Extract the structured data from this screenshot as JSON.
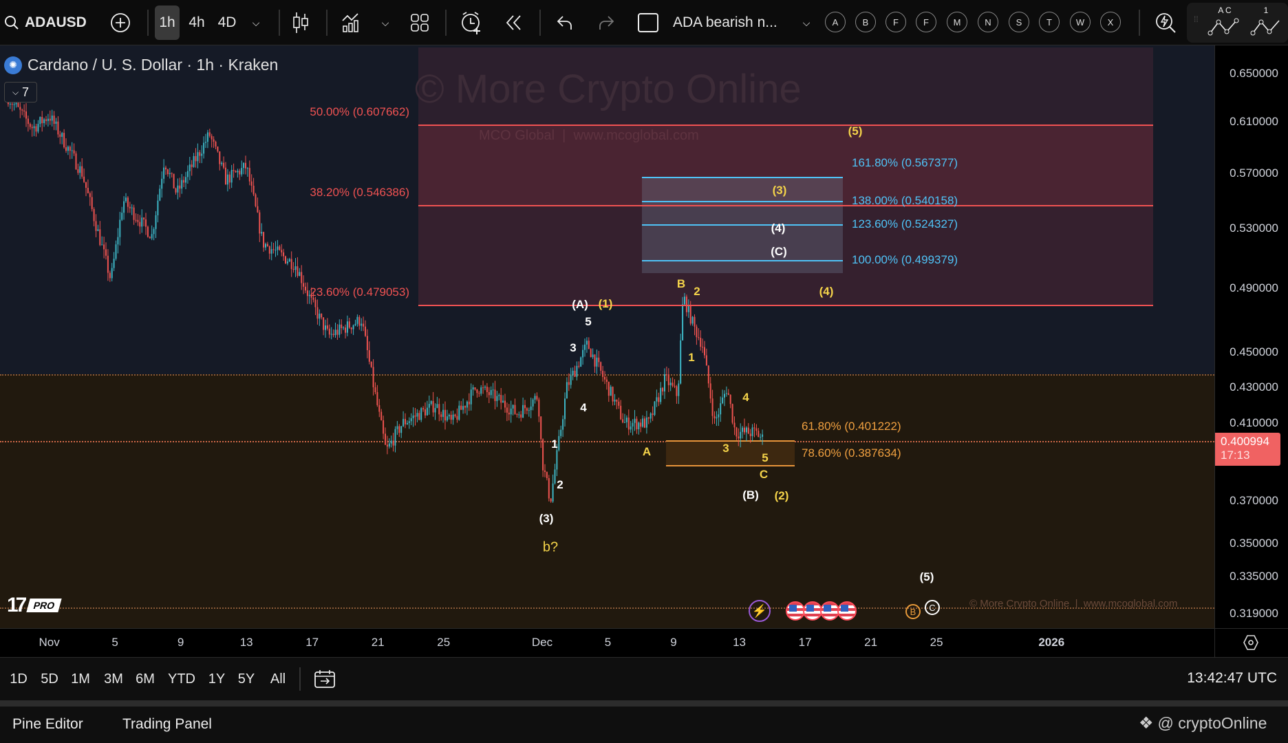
{
  "toolbar": {
    "symbol": "ADAUSD",
    "intervals": [
      "1h",
      "4h",
      "4D"
    ],
    "active_interval": "1h",
    "layout_name": "ADA bearish n...",
    "drawing_tools": [
      "A",
      "B",
      "F",
      "F",
      "M",
      "N",
      "S",
      "T",
      "W",
      "X"
    ],
    "pattern_labels": [
      "A C",
      "1"
    ],
    "icons": [
      "search-icon",
      "add-symbol-icon",
      "chevron-down-icon",
      "candles-icon",
      "indicators-icon",
      "layout-grid-icon",
      "alert-icon",
      "replay-icon",
      "undo-icon",
      "redo-icon",
      "lightning-search-icon"
    ]
  },
  "legend": {
    "title": "Cardano / U. S. Dollar · 1h · Kraken",
    "indicators_count": "7"
  },
  "watermark": {
    "main": "© More Crypto Online",
    "sub": "MCO Global  |  www.mcoglobal.com",
    "footer": "© More Crypto Online  |  www.mcoglobal.com"
  },
  "fib_retracement": [
    {
      "label": "50.00% (0.607662)",
      "price": 0.607662
    },
    {
      "label": "38.20% (0.546386)",
      "price": 0.546386
    },
    {
      "label": "23.60% (0.479053)",
      "price": 0.479053
    }
  ],
  "fib_extension": [
    {
      "label": "161.80% (0.567377)",
      "price": 0.567377
    },
    {
      "label": "138.00% (0.540158)",
      "price": 0.540158
    },
    {
      "label": "123.60% (0.524327)",
      "price": 0.524327
    },
    {
      "label": "100.00% (0.499379)",
      "price": 0.499379
    }
  ],
  "fib_support": [
    {
      "label": "61.80% (0.401222)",
      "price": 0.401222
    },
    {
      "label": "78.60% (0.387634)",
      "price": 0.387634
    }
  ],
  "wave_labels": [
    {
      "text": "(5)",
      "color": "yellow"
    },
    {
      "text": "(3)",
      "color": "yellow"
    },
    {
      "text": "(4)",
      "color": "white"
    },
    {
      "text": "(C)",
      "color": "white"
    },
    {
      "text": "B",
      "color": "yellow"
    },
    {
      "text": "2",
      "color": "yellow"
    },
    {
      "text": "(4)",
      "color": "yellow"
    },
    {
      "text": "(A)",
      "color": "white"
    },
    {
      "text": "(1)",
      "color": "yellow"
    },
    {
      "text": "5",
      "color": "white"
    },
    {
      "text": "3",
      "color": "white"
    },
    {
      "text": "1",
      "color": "yellow"
    },
    {
      "text": "4",
      "color": "yellow"
    },
    {
      "text": "4",
      "color": "white"
    },
    {
      "text": "1",
      "color": "white"
    },
    {
      "text": "A",
      "color": "yellow"
    },
    {
      "text": "3",
      "color": "yellow"
    },
    {
      "text": "5",
      "color": "yellow"
    },
    {
      "text": "C",
      "color": "yellow"
    },
    {
      "text": "2",
      "color": "white"
    },
    {
      "text": "(B)",
      "color": "white"
    },
    {
      "text": "(2)",
      "color": "yellow"
    },
    {
      "text": "(3)",
      "color": "white"
    },
    {
      "text": "b?",
      "color": "yellow"
    },
    {
      "text": "(5)",
      "color": "white"
    }
  ],
  "events": {
    "earnings_markers": [
      "B",
      "C"
    ]
  },
  "price_axis": {
    "ticks": [
      "0.650000",
      "0.610000",
      "0.570000",
      "0.530000",
      "0.490000",
      "0.450000",
      "0.430000",
      "0.410000",
      "0.370000",
      "0.350000",
      "0.335000",
      "0.319000"
    ],
    "current_price": "0.400994",
    "countdown": "17:13"
  },
  "time_axis": {
    "ticks": [
      {
        "label": "Nov",
        "date": "2025-11-01"
      },
      {
        "label": "5",
        "date": "2025-11-05"
      },
      {
        "label": "9",
        "date": "2025-11-09"
      },
      {
        "label": "13",
        "date": "2025-11-13"
      },
      {
        "label": "17",
        "date": "2025-11-17"
      },
      {
        "label": "21",
        "date": "2025-11-21"
      },
      {
        "label": "25",
        "date": "2025-11-25"
      },
      {
        "label": "Dec",
        "date": "2025-12-01"
      },
      {
        "label": "5",
        "date": "2025-12-05"
      },
      {
        "label": "9",
        "date": "2025-12-09"
      },
      {
        "label": "13",
        "date": "2025-12-13"
      },
      {
        "label": "17",
        "date": "2025-12-17"
      },
      {
        "label": "21",
        "date": "2025-12-21"
      },
      {
        "label": "25",
        "date": "2025-12-25"
      },
      {
        "label": "2026",
        "date": "2026-01-01"
      }
    ]
  },
  "periods": [
    "1D",
    "5D",
    "1M",
    "3M",
    "6M",
    "YTD",
    "1Y",
    "5Y",
    "All"
  ],
  "clock": "13:42:47 UTC",
  "bottom_panel": {
    "tabs": [
      "Pine Editor",
      "Trading Panel"
    ],
    "handle": "@ cryptoOnline"
  },
  "colors": {
    "up": "#3db5c4",
    "down": "#ef5350",
    "fib_red": "#f05252",
    "fib_cyan": "#4fc3f7",
    "support_orange": "#f0a040",
    "wave_yellow": "#f5d44a",
    "current_price_bg": "#f06262"
  },
  "chart_data": {
    "type": "candlestick",
    "scale": "log",
    "ylim": [
      0.31,
      0.66
    ],
    "price_path": [
      [
        "2025-10-29T12:00",
        0.63
      ],
      [
        "2025-10-31T00:00",
        0.605
      ],
      [
        "2025-11-01T00:00",
        0.615
      ],
      [
        "2025-11-03T00:00",
        0.57
      ],
      [
        "2025-11-04T18:00",
        0.495
      ],
      [
        "2025-11-05T12:00",
        0.55
      ],
      [
        "2025-11-07T06:00",
        0.525
      ],
      [
        "2025-11-08T00:00",
        0.58
      ],
      [
        "2025-11-08T18:00",
        0.555
      ],
      [
        "2025-11-10T18:00",
        0.6
      ],
      [
        "2025-11-11T18:00",
        0.565
      ],
      [
        "2025-11-13T00:00",
        0.575
      ],
      [
        "2025-11-14T00:00",
        0.52
      ],
      [
        "2025-11-16T00:00",
        0.505
      ],
      [
        "2025-11-17T00:00",
        0.48
      ],
      [
        "2025-11-18T00:00",
        0.46
      ],
      [
        "2025-11-20T00:00",
        0.47
      ],
      [
        "2025-11-20T18:00",
        0.43
      ],
      [
        "2025-11-21T12:00",
        0.395
      ],
      [
        "2025-11-22T12:00",
        0.41
      ],
      [
        "2025-11-24T12:00",
        0.42
      ],
      [
        "2025-11-25T12:00",
        0.41
      ],
      [
        "2025-11-27T00:00",
        0.43
      ],
      [
        "2025-11-28T00:00",
        0.425
      ],
      [
        "2025-11-29T12:00",
        0.415
      ],
      [
        "2025-11-30T18:00",
        0.425
      ],
      [
        "2025-12-01T00:00",
        0.39
      ],
      [
        "2025-12-01T12:00",
        0.37
      ],
      [
        "2025-12-02T12:00",
        0.43
      ],
      [
        "2025-12-03T18:00",
        0.455
      ],
      [
        "2025-12-05T06:00",
        0.425
      ],
      [
        "2025-12-06T00:00",
        0.41
      ],
      [
        "2025-12-07T12:00",
        0.41
      ],
      [
        "2025-12-08T12:00",
        0.435
      ],
      [
        "2025-12-09T06:00",
        0.425
      ],
      [
        "2025-12-09T14:00",
        0.485
      ],
      [
        "2025-12-10T06:00",
        0.465
      ],
      [
        "2025-12-10T18:00",
        0.455
      ],
      [
        "2025-12-11T12:00",
        0.41
      ],
      [
        "2025-12-12T06:00",
        0.43
      ],
      [
        "2025-12-12T18:00",
        0.405
      ],
      [
        "2025-12-14T00:00",
        0.405
      ],
      [
        "2025-12-14T12:00",
        0.401
      ]
    ]
  }
}
